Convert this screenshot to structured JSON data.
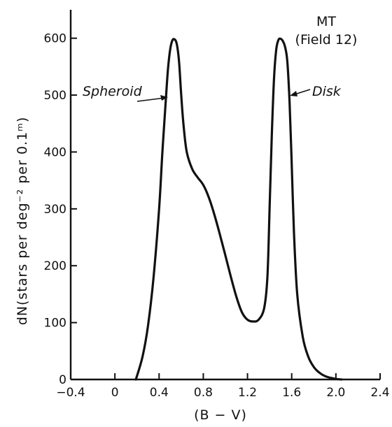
{
  "chart_data": {
    "type": "line",
    "xlabel": "(B − V)",
    "ylabel": "dN(stars per deg⁻² per 0.1ᵐ)",
    "xlim": [
      -0.4,
      2.4
    ],
    "ylim": [
      0,
      650
    ],
    "x_ticks": [
      -0.4,
      0,
      0.4,
      0.8,
      1.2,
      1.6,
      2.0,
      2.4
    ],
    "x_tick_labels": [
      "−0.4",
      "0",
      "0.4",
      "0.8",
      "1.2",
      "1.6",
      "2.0",
      "2.4"
    ],
    "y_ticks": [
      0,
      100,
      200,
      300,
      400,
      500,
      600
    ],
    "y_tick_labels": [
      "0",
      "100",
      "200",
      "300",
      "400",
      "500",
      "600"
    ],
    "grid": false,
    "annotations": {
      "label_line1": "MT",
      "label_line2": "(Field 12)",
      "spheroid": "Spheroid",
      "disk": "Disk"
    },
    "series": [
      {
        "x": [
          0.19,
          0.25,
          0.3,
          0.35,
          0.4,
          0.43,
          0.46,
          0.48,
          0.5,
          0.52,
          0.54,
          0.56,
          0.58,
          0.6,
          0.62,
          0.65,
          0.7,
          0.75,
          0.8,
          0.85,
          0.9,
          0.95,
          1.0,
          1.05,
          1.1,
          1.15,
          1.2,
          1.25,
          1.3,
          1.35,
          1.38,
          1.4,
          1.42,
          1.44,
          1.46,
          1.48,
          1.5,
          1.52,
          1.54,
          1.56,
          1.58,
          1.6,
          1.62,
          1.65,
          1.7,
          1.75,
          1.8,
          1.85,
          1.9,
          1.95,
          2.0,
          2.05
        ],
        "y": [
          0,
          40,
          95,
          180,
          300,
          400,
          490,
          545,
          580,
          596,
          598,
          590,
          560,
          500,
          450,
          400,
          370,
          355,
          342,
          320,
          290,
          255,
          218,
          180,
          145,
          118,
          105,
          102,
          105,
          125,
          180,
          300,
          430,
          530,
          580,
          597,
          599,
          595,
          585,
          560,
          490,
          380,
          260,
          150,
          75,
          40,
          22,
          12,
          6,
          3,
          1,
          0
        ]
      }
    ]
  }
}
